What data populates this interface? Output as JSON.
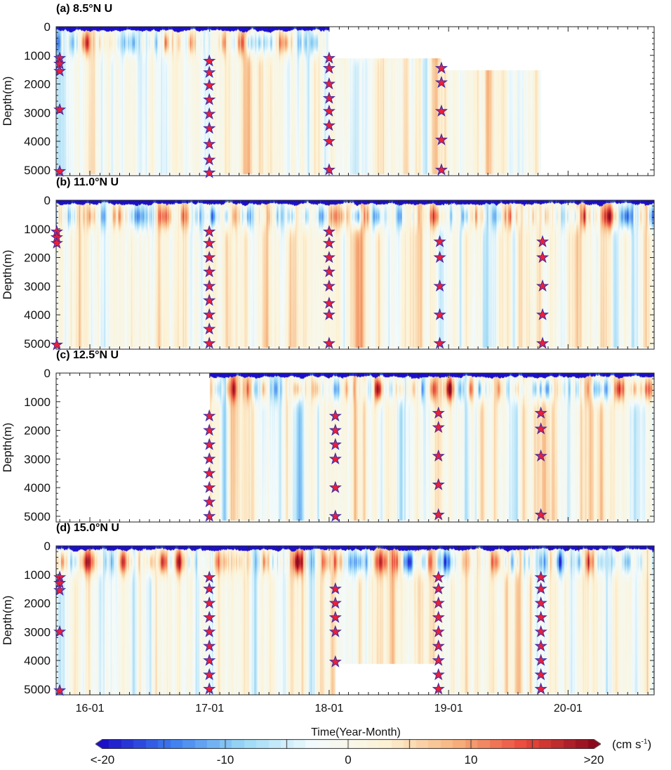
{
  "chart_data": {
    "type": "heatmap",
    "xlabel": "Time(Year-Month)",
    "ylabel": "Depth(m)",
    "xlim": [
      "2015-09-20",
      "2020-09-20"
    ],
    "ylim": [
      0,
      5200
    ],
    "y_reversed": true,
    "x_ticks": [
      {
        "date": "2016-01-01",
        "label": "16-01"
      },
      {
        "date": "2017-01-01",
        "label": "17-01"
      },
      {
        "date": "2018-01-01",
        "label": "18-01"
      },
      {
        "date": "2019-01-01",
        "label": "19-01"
      },
      {
        "date": "2020-01-01",
        "label": "20-01"
      }
    ],
    "y_ticks": [
      "0",
      "1000",
      "2000",
      "3000",
      "4000",
      "5000"
    ],
    "colorbar": {
      "unit": "(cm s",
      "unit_sup": "-1",
      "unit_close": ")",
      "range": [
        -20,
        20
      ],
      "ticks": [
        "<-20",
        "-10",
        "0",
        "10",
        ">20"
      ],
      "tick_values": [
        -20,
        -10,
        0,
        10,
        20
      ],
      "colors": [
        "#1c0fc8",
        "#3d7ef0",
        "#9ad8f5",
        "#f2fbfd",
        "#fdf3d6",
        "#f7b57f",
        "#eb4a3c",
        "#8c0a1e"
      ]
    },
    "marker": {
      "shape": "star",
      "fill": "#e8203a",
      "stroke": "#3a2aa8"
    },
    "panels": [
      {
        "title": "(a) 8.5°N U",
        "coverage": [
          {
            "start": "2015-09-20",
            "end": "2018-01-01",
            "top": 0,
            "bottom": 5150
          },
          {
            "start": "2018-01-01",
            "end": "2018-12-10",
            "top": 1100,
            "bottom": 5150
          },
          {
            "start": "2018-12-10",
            "end": "2019-10-10",
            "top": 1500,
            "bottom": 5150
          }
        ],
        "instruments": [
          {
            "date": "2015-10-01",
            "depths": [
              1100,
              1300,
              1550,
              2900,
              5050
            ]
          },
          {
            "date": "2016-12-31",
            "depths": [
              1200,
              1600,
              2050,
              2550,
              3050,
              3550,
              4100,
              4650,
              5100
            ]
          },
          {
            "date": "2018-01-01",
            "depths": [
              1100,
              1450,
              2000,
              2500,
              2950,
              3450,
              4000,
              5000
            ]
          },
          {
            "date": "2018-12-10",
            "depths": [
              1450,
              1950,
              2950,
              3950,
              5000
            ]
          }
        ]
      },
      {
        "title": "(b) 11.0°N U",
        "coverage": [
          {
            "start": "2015-09-20",
            "end": "2020-09-20",
            "top": 0,
            "bottom": 5150
          }
        ],
        "instruments": [
          {
            "date": "2015-09-22",
            "depths": [
              1100,
              1300,
              1500,
              5050
            ]
          },
          {
            "date": "2016-12-31",
            "depths": [
              1100,
              1500,
              2000,
              2500,
              3000,
              3500,
              4000,
              4500,
              5000
            ]
          },
          {
            "date": "2018-01-01",
            "depths": [
              1100,
              1500,
              2000,
              2500,
              3000,
              3600,
              4000,
              5000
            ]
          },
          {
            "date": "2018-12-05",
            "depths": [
              1450,
              2000,
              3000,
              4000,
              5000
            ]
          },
          {
            "date": "2019-10-15",
            "depths": [
              1450,
              2000,
              3000,
              4000,
              5000
            ]
          }
        ]
      },
      {
        "title": "(c) 12.5°N U",
        "coverage": [
          {
            "start": "2016-12-31",
            "end": "2020-09-20",
            "top": 0,
            "bottom": 5150
          }
        ],
        "instruments": [
          {
            "date": "2016-12-31",
            "depths": [
              1500,
              2000,
              2500,
              3000,
              3500,
              4000,
              4500,
              5000
            ]
          },
          {
            "date": "2018-01-20",
            "depths": [
              1500,
              2000,
              2500,
              3000,
              4000,
              5000
            ]
          },
          {
            "date": "2018-12-01",
            "depths": [
              1400,
              1900,
              2900,
              3900,
              4950
            ]
          },
          {
            "date": "2019-10-10",
            "depths": [
              1400,
              1950,
              2900,
              4950
            ]
          }
        ]
      },
      {
        "title": "(d) 15.0°N U",
        "coverage": [
          {
            "start": "2015-09-20",
            "end": "2018-01-20",
            "top": 0,
            "bottom": 5200
          },
          {
            "start": "2018-01-20",
            "end": "2018-12-01",
            "top": 0,
            "bottom": 4100
          },
          {
            "start": "2018-12-01",
            "end": "2020-09-20",
            "top": 0,
            "bottom": 5150
          }
        ],
        "instruments": [
          {
            "date": "2015-10-01",
            "depths": [
              1100,
              1300,
              1550,
              3000,
              5050
            ]
          },
          {
            "date": "2016-12-31",
            "depths": [
              1100,
              1500,
              2000,
              2500,
              3000,
              3500,
              4000,
              4500,
              5000
            ]
          },
          {
            "date": "2018-01-20",
            "depths": [
              1500,
              2000,
              2500,
              3000,
              4050
            ]
          },
          {
            "date": "2018-12-01",
            "depths": [
              1100,
              1500,
              2000,
              2500,
              3000,
              3500,
              4000,
              4500,
              5000
            ]
          },
          {
            "date": "2019-10-10",
            "depths": [
              1100,
              1500,
              2000,
              2500,
              3000,
              3500,
              4000,
              4500,
              5000
            ]
          }
        ]
      }
    ]
  }
}
